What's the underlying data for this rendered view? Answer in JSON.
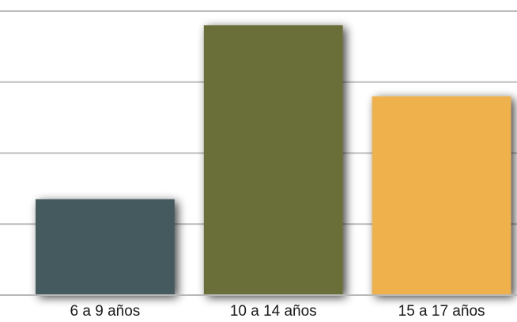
{
  "chart_data": {
    "type": "bar",
    "categories": [
      "6 a 9 años",
      "10 a 14 años",
      "15 a 17 años"
    ],
    "values": [
      1.35,
      3.8,
      2.8
    ],
    "colors": [
      "#445a5e",
      "#6a6e38",
      "#eeb14c"
    ],
    "ylim": [
      0,
      4
    ],
    "grid": true,
    "legend": "none",
    "title": "",
    "xlabel": "",
    "ylabel": ""
  }
}
